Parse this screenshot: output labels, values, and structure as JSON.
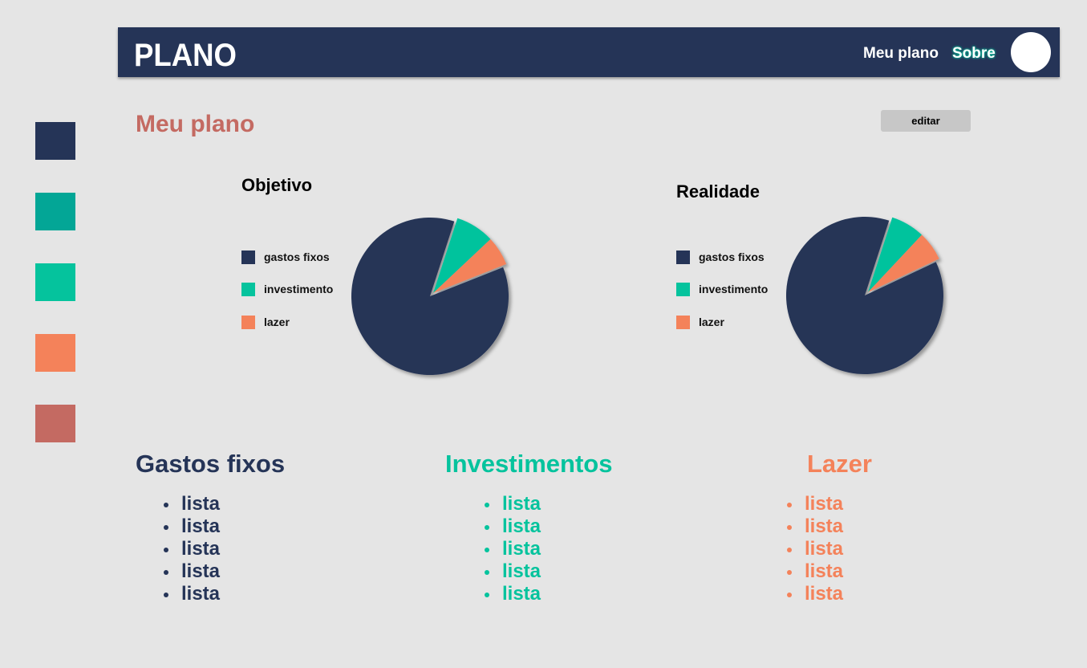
{
  "palette": [
    {
      "name": "navy",
      "color": "#253457"
    },
    {
      "name": "dark-teal",
      "color": "#03a696"
    },
    {
      "name": "teal",
      "color": "#05c39d"
    },
    {
      "name": "orange",
      "color": "#f4825a"
    },
    {
      "name": "rose",
      "color": "#c46a62"
    }
  ],
  "header": {
    "logo": "PLANO",
    "nav": [
      {
        "label": "Meu plano",
        "active": false
      },
      {
        "label": "Sobre",
        "active": true
      }
    ]
  },
  "page": {
    "title": "Meu plano",
    "edit_label": "editar"
  },
  "legend": [
    {
      "label": "gastos fixos",
      "color": "#253457"
    },
    {
      "label": "investimento",
      "color": "#05c39d"
    },
    {
      "label": "lazer",
      "color": "#f4825a"
    }
  ],
  "chart_data": [
    {
      "type": "pie",
      "title": "Objetivo",
      "labels": [
        "gastos fixos",
        "investimento",
        "lazer"
      ],
      "values": [
        86,
        8,
        6
      ],
      "colors": [
        "#253457",
        "#05c39d",
        "#f4825a"
      ]
    },
    {
      "type": "pie",
      "title": "Realidade",
      "labels": [
        "gastos fixos",
        "investimento",
        "lazer"
      ],
      "values": [
        87,
        7,
        6
      ],
      "colors": [
        "#253457",
        "#05c39d",
        "#f4825a"
      ]
    }
  ],
  "columns": [
    {
      "title": "Gastos fixos",
      "color": "#253457",
      "items": [
        "lista",
        "lista",
        "lista",
        "lista",
        "lista"
      ]
    },
    {
      "title": "Investimentos",
      "color": "#05c39d",
      "items": [
        "lista",
        "lista",
        "lista",
        "lista",
        "lista"
      ]
    },
    {
      "title": "Lazer",
      "color": "#f4825a",
      "items": [
        "lista",
        "lista",
        "lista",
        "lista",
        "lista"
      ]
    }
  ]
}
